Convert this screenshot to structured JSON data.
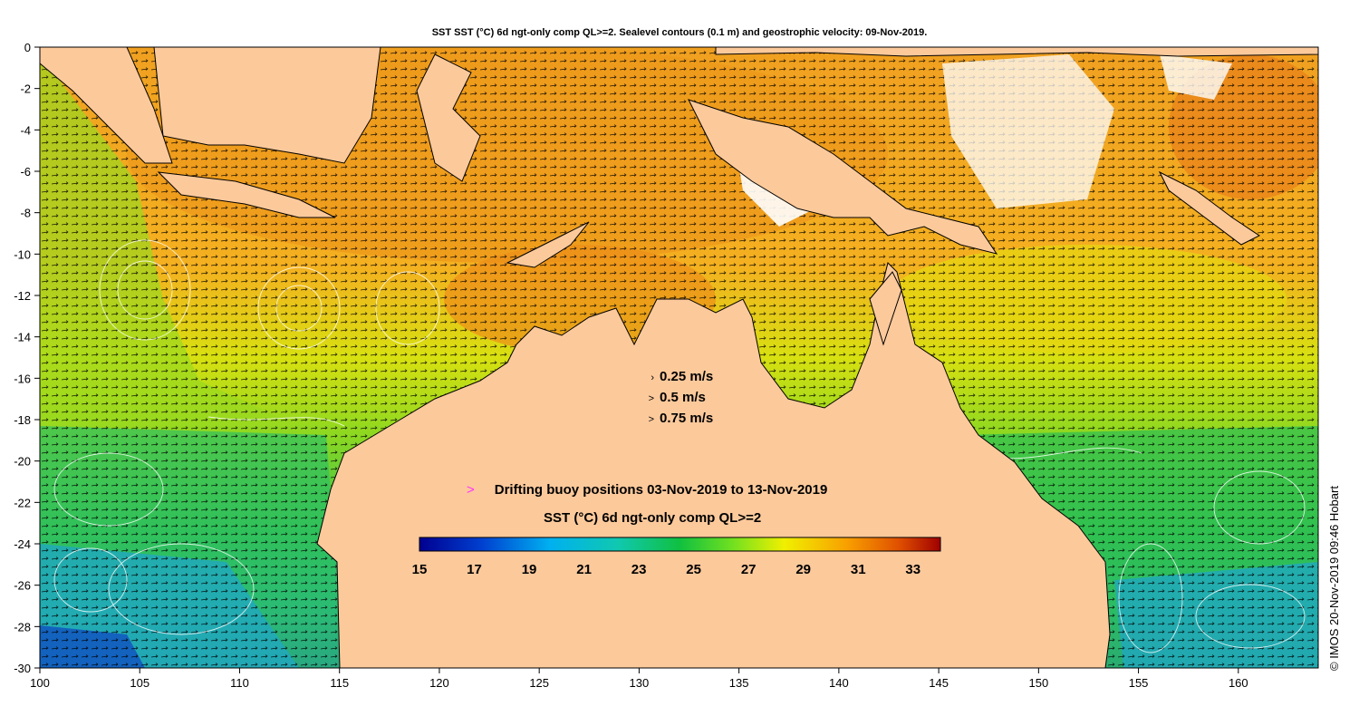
{
  "title": "SST SST (°C) 6d ngt-only comp QL>=2. Sealevel contours (0.1 m) and geostrophic velocity: 09-Nov-2019.",
  "axes": {
    "x_ticks": [
      "100",
      "105",
      "110",
      "115",
      "120",
      "125",
      "130",
      "135",
      "140",
      "145",
      "150",
      "155",
      "160"
    ],
    "y_ticks": [
      "0",
      "-2",
      "-4",
      "-6",
      "-8",
      "-10",
      "-12",
      "-14",
      "-16",
      "-18",
      "-20",
      "-22",
      "-24",
      "-26",
      "-28",
      "-30"
    ],
    "lon_range": [
      100,
      164
    ],
    "lat_range": [
      -30,
      0
    ]
  },
  "velocity_legend": {
    "items": [
      {
        "arrow": "›",
        "label": "0.25 m/s"
      },
      {
        "arrow": ">",
        "label": "0.5 m/s"
      },
      {
        "arrow": ">",
        "label": "0.75 m/s"
      }
    ]
  },
  "buoy_legend": {
    "marker": ">",
    "marker_color": "#ff33ff",
    "label": "Drifting buoy positions 03-Nov-2019 to 13-Nov-2019"
  },
  "colorbar": {
    "title": "SST (°C) 6d ngt-only comp QL>=2",
    "labels": [
      "15",
      "17",
      "19",
      "21",
      "23",
      "25",
      "27",
      "29",
      "31",
      "33"
    ],
    "range": [
      15,
      34
    ]
  },
  "credit": "© IMOS 20-Nov-2019 09:46 Hobart",
  "colors": {
    "land": "#fcc99b",
    "cold": "#000090",
    "warm": "#a00000",
    "cloud": "#ffffff"
  }
}
